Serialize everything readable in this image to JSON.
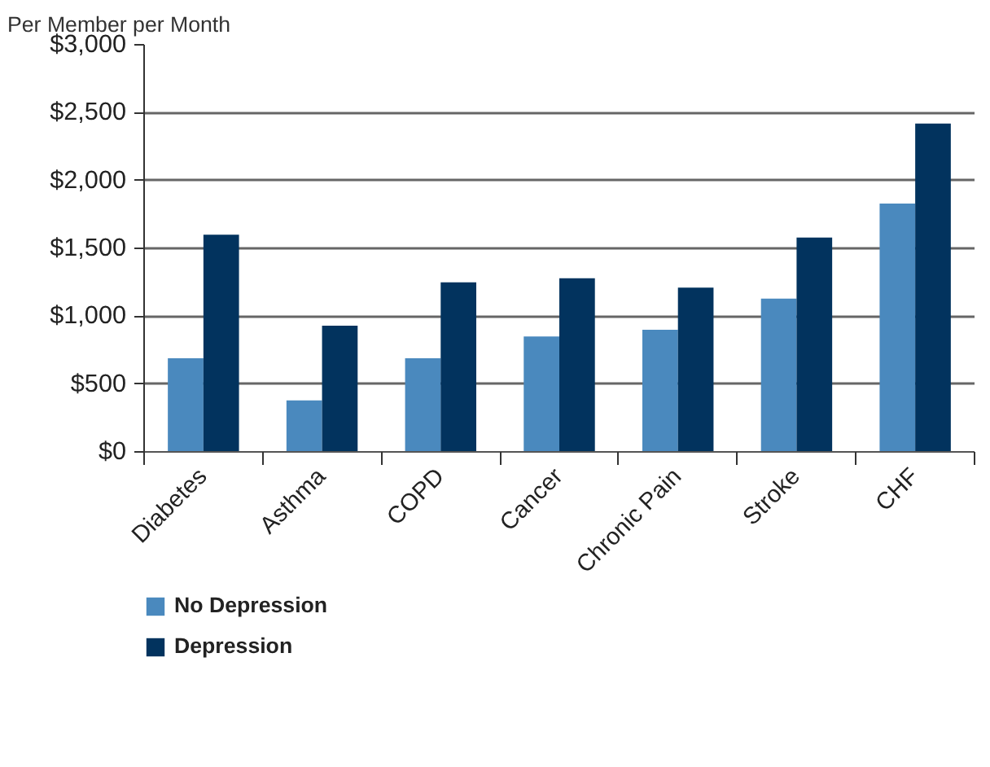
{
  "chart_data": {
    "type": "bar",
    "ylabel": "Per Member per Month",
    "categories": [
      "Diabetes",
      "Asthma",
      "COPD",
      "Cancer",
      "Chronic Pain",
      "Stroke",
      "CHF"
    ],
    "series": [
      {
        "name": "No Depression",
        "color": "#4a89be",
        "values": [
          690,
          380,
          690,
          850,
          900,
          1130,
          1830
        ]
      },
      {
        "name": "Depression",
        "color": "#02335e",
        "values": [
          1600,
          930,
          1250,
          1280,
          1210,
          1580,
          2420
        ]
      }
    ],
    "ylim": [
      0,
      3000
    ],
    "yticks": [
      {
        "value": 0,
        "label": "$0"
      },
      {
        "value": 500,
        "label": "$500"
      },
      {
        "value": 1000,
        "label": "$1,000"
      },
      {
        "value": 1500,
        "label": "$1,500"
      },
      {
        "value": 2000,
        "label": "$2,000"
      },
      {
        "value": 2500,
        "label": "$2,500"
      },
      {
        "value": 3000,
        "label": "$3,000"
      }
    ],
    "grid": "y",
    "legend": "bottom"
  }
}
